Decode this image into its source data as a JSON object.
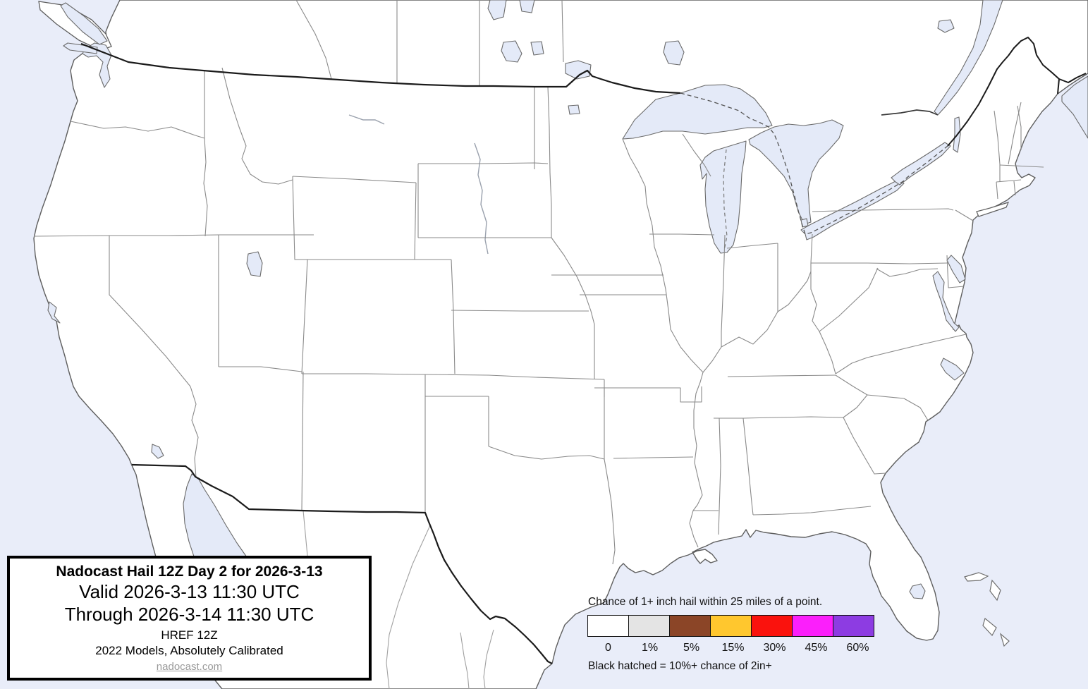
{
  "title_box": {
    "line1": "Nadocast Hail 12Z Day 2 for 2026-3-13",
    "line2": "Valid 2026-3-13 11:30 UTC",
    "line3": "Through 2026-3-14 11:30 UTC",
    "line4": "HREF 12Z",
    "line5": "2022 Models, Absolutely Calibrated",
    "link": "nadocast.com"
  },
  "legend": {
    "title": "Chance of 1+ inch hail within 25 miles of a point.",
    "bins": [
      {
        "label": "0",
        "color": "#ffffff"
      },
      {
        "label": "1%",
        "color": "#e4e4e4"
      },
      {
        "label": "5%",
        "color": "#8b4527"
      },
      {
        "label": "15%",
        "color": "#ffc72e"
      },
      {
        "label": "30%",
        "color": "#fa120d"
      },
      {
        "label": "45%",
        "color": "#fb1ffb"
      },
      {
        "label": "60%",
        "color": "#8d3ce2"
      }
    ],
    "note": "Black hatched = 10%+ chance of 2in+"
  },
  "map": {
    "region": "Continental United States with southern Canada and northern Mexico",
    "forecast_shading": "none visible (0 category everywhere)",
    "ocean_color": "#e9edf9",
    "lake_color": "#e4eaf8",
    "land_color": "#ffffff",
    "water_features": "Pacific Ocean, Atlantic Ocean, Gulf of Mexico, Gulf of California, Great Lakes, Great Salt Lake, Lake Okeechobee, Salton Sea, Lake Champlain, Chesapeake Bay, Puget Sound, St. Lawrence River"
  }
}
